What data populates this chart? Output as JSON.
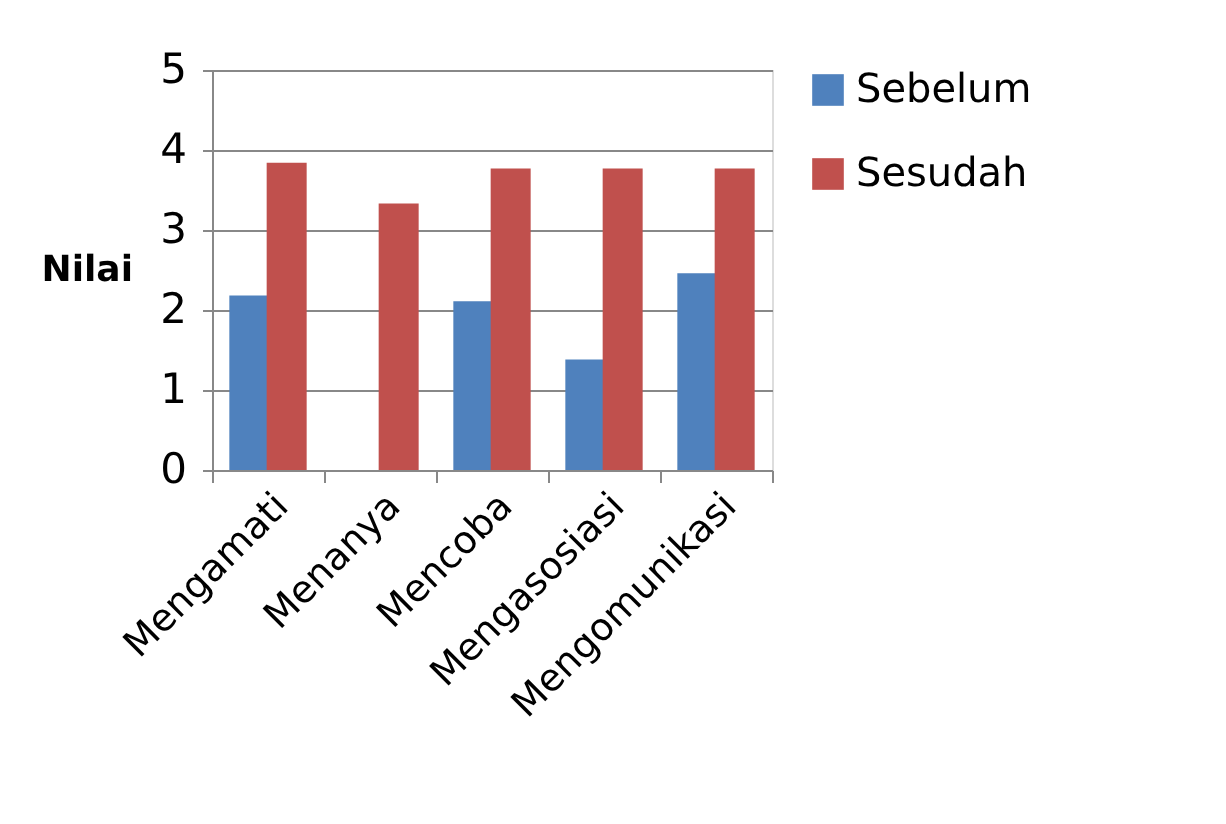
{
  "chart_data": {
    "type": "bar",
    "ylabel": "Nilai",
    "categories": [
      "Mengamati",
      "Menanya",
      "Mencoba",
      "Mengasosiasi",
      "Mengomunikasi"
    ],
    "series": [
      {
        "name": "Sebelum",
        "color": "#4f81bd",
        "values": [
          2.18,
          0,
          2.11,
          1.38,
          2.46
        ]
      },
      {
        "name": "Sesudah",
        "color": "#c0504d",
        "values": [
          3.84,
          3.33,
          3.77,
          3.77,
          3.77
        ]
      }
    ],
    "ylim": [
      0,
      5
    ],
    "yticks": [
      0,
      1,
      2,
      3,
      4,
      5
    ],
    "grid": "y",
    "legend": "right"
  }
}
